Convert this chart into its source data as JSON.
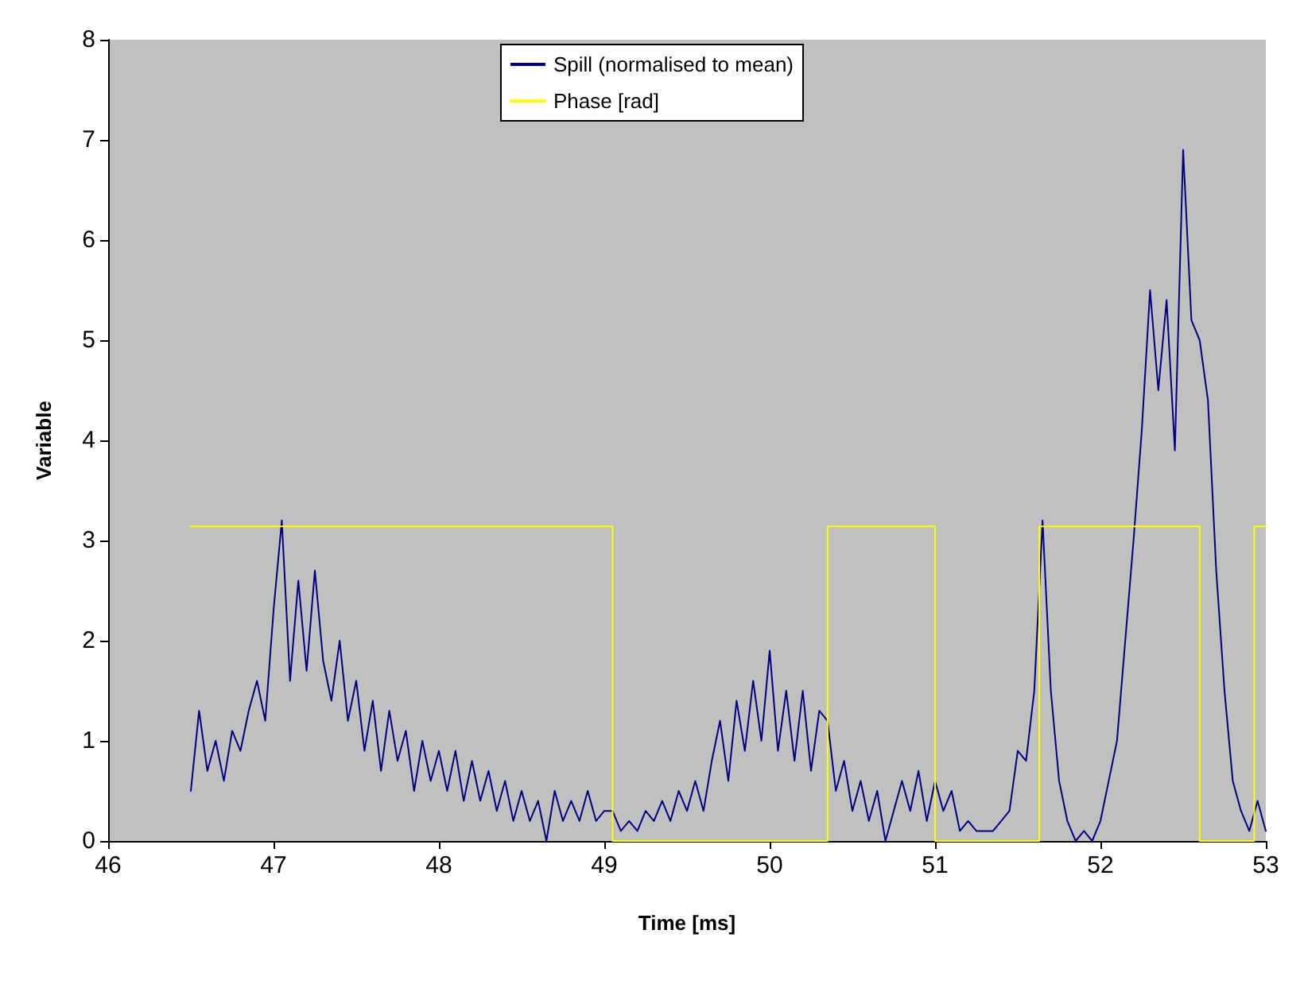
{
  "chart_data": {
    "type": "line",
    "xlabel": "Time [ms]",
    "ylabel": "Variable",
    "xlim": [
      46,
      53
    ],
    "xticks": [
      46,
      47,
      48,
      49,
      50,
      51,
      52,
      53
    ],
    "ylim": [
      0,
      8
    ],
    "yticks": [
      0,
      1,
      2,
      3,
      4,
      5,
      6,
      7,
      8
    ],
    "grid": false,
    "legend": "top",
    "marker": "none",
    "series": [
      {
        "name": "Spill (normalised to mean)",
        "color": "#000080",
        "type": "line",
        "x": [
          46.5,
          46.55,
          46.6,
          46.65,
          46.7,
          46.75,
          46.8,
          46.85,
          46.9,
          46.95,
          47,
          47.05,
          47.1,
          47.15,
          47.2,
          47.25,
          47.3,
          47.35,
          47.4,
          47.45,
          47.5,
          47.55,
          47.6,
          47.65,
          47.7,
          47.75,
          47.8,
          47.85,
          47.9,
          47.95,
          48,
          48.05,
          48.1,
          48.15,
          48.2,
          48.25,
          48.3,
          48.35,
          48.4,
          48.45,
          48.5,
          48.55,
          48.6,
          48.65,
          48.7,
          48.75,
          48.8,
          48.85,
          48.9,
          48.95,
          49,
          49.05,
          49.1,
          49.15,
          49.2,
          49.25,
          49.3,
          49.35,
          49.4,
          49.45,
          49.5,
          49.55,
          49.6,
          49.65,
          49.7,
          49.75,
          49.8,
          49.85,
          49.9,
          49.95,
          50,
          50.05,
          50.1,
          50.15,
          50.2,
          50.25,
          50.3,
          50.35,
          50.4,
          50.45,
          50.5,
          50.55,
          50.6,
          50.65,
          50.7,
          50.75,
          50.8,
          50.85,
          50.9,
          50.95,
          51,
          51.05,
          51.1,
          51.15,
          51.2,
          51.25,
          51.3,
          51.35,
          51.4,
          51.45,
          51.5,
          51.55,
          51.6,
          51.65,
          51.7,
          51.75,
          51.8,
          51.85,
          51.9,
          51.95,
          52,
          52.05,
          52.1,
          52.15,
          52.2,
          52.25,
          52.3,
          52.35,
          52.4,
          52.45,
          52.5,
          52.55,
          52.6,
          52.65,
          52.7,
          52.75,
          52.8,
          52.85,
          52.9,
          52.95,
          53
        ],
        "values": [
          0.5,
          1.3,
          0.7,
          1,
          0.6,
          1.1,
          0.9,
          1.3,
          1.6,
          1.2,
          2.3,
          3.2,
          1.6,
          2.6,
          1.7,
          2.7,
          1.8,
          1.4,
          2,
          1.2,
          1.6,
          0.9,
          1.4,
          0.7,
          1.3,
          0.8,
          1.1,
          0.5,
          1,
          0.6,
          0.9,
          0.5,
          0.9,
          0.4,
          0.8,
          0.4,
          0.7,
          0.3,
          0.6,
          0.2,
          0.5,
          0.2,
          0.4,
          0,
          0.5,
          0.2,
          0.4,
          0.2,
          0.5,
          0.2,
          0.3,
          0.3,
          0.1,
          0.2,
          0.1,
          0.3,
          0.2,
          0.4,
          0.2,
          0.5,
          0.3,
          0.6,
          0.3,
          0.8,
          1.2,
          0.6,
          1.4,
          0.9,
          1.6,
          1,
          1.9,
          0.9,
          1.5,
          0.8,
          1.5,
          0.7,
          1.3,
          1.2,
          0.5,
          0.8,
          0.3,
          0.6,
          0.2,
          0.5,
          0,
          0.3,
          0.6,
          0.3,
          0.7,
          0.2,
          0.6,
          0.3,
          0.5,
          0.1,
          0.2,
          0.1,
          0.1,
          0.1,
          0.2,
          0.3,
          0.9,
          0.8,
          1.5,
          3.2,
          1.5,
          0.6,
          0.2,
          0,
          0.1,
          0,
          0.2,
          0.6,
          1,
          2,
          3,
          4.1,
          5.5,
          4.5,
          5.4,
          3.9,
          6.9,
          5.2,
          5,
          4.4,
          2.7,
          1.5,
          0.6,
          0.3,
          0.1,
          0.4,
          0.1
        ]
      },
      {
        "name": "Phase [rad]",
        "color": "#ffff00",
        "type": "step",
        "x": [
          46.5,
          49.05,
          50.35,
          51,
          51.63,
          52.6,
          52.93,
          53
        ],
        "values": [
          3.14,
          0,
          3.14,
          0,
          3.14,
          0,
          3.14,
          3.14
        ]
      }
    ]
  }
}
